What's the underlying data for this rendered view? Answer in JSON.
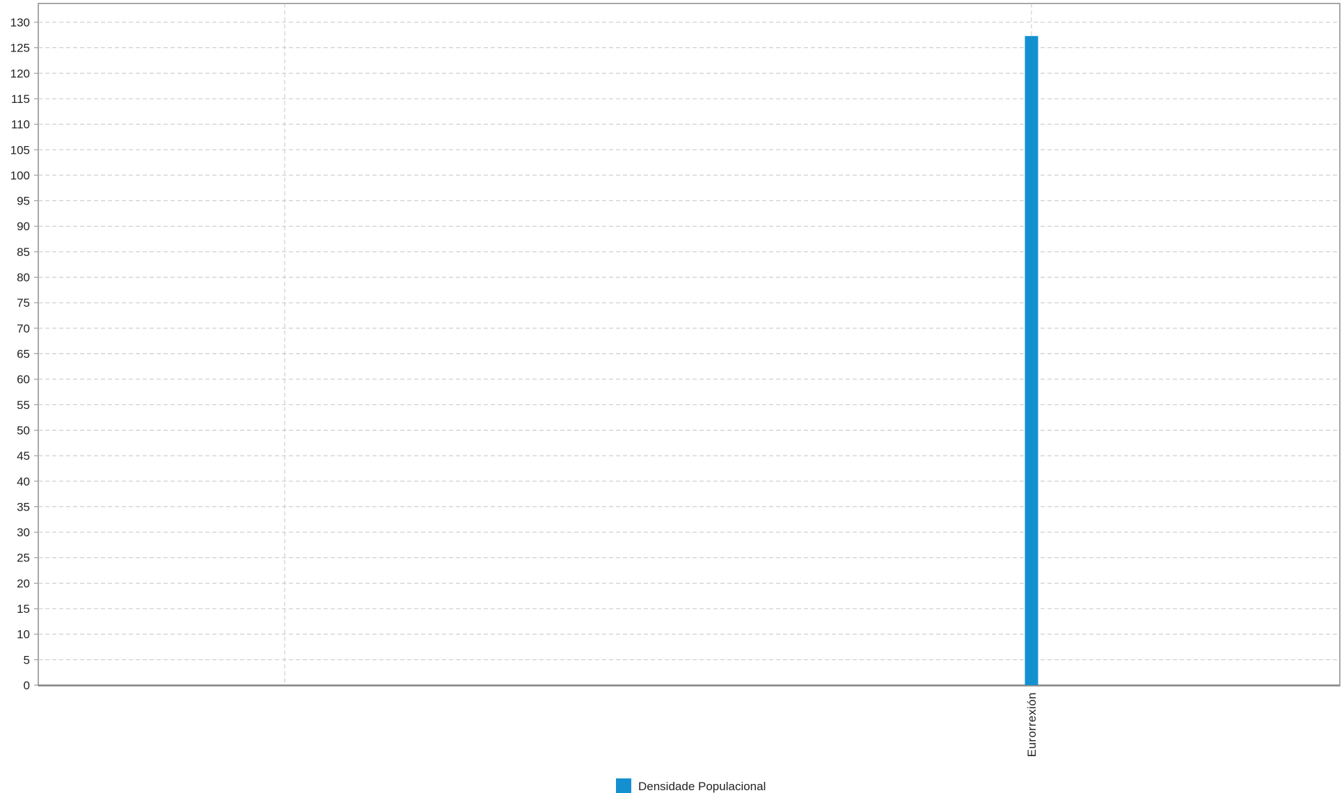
{
  "chart_data": {
    "type": "bar",
    "categories": [
      "",
      "Eurorrexión"
    ],
    "series": [
      {
        "name": "Densidade Populacional",
        "values": [
          null,
          127.3
        ],
        "color": "#1490d0"
      }
    ],
    "ylim": [
      0,
      130
    ],
    "yticks": [
      0,
      5,
      10,
      15,
      20,
      25,
      30,
      35,
      40,
      45,
      50,
      55,
      60,
      65,
      70,
      75,
      80,
      85,
      90,
      95,
      100,
      105,
      110,
      115,
      120,
      125,
      130
    ],
    "grid": true,
    "legend": {
      "position": "bottom",
      "entries": [
        "Densidade Populacional"
      ]
    }
  }
}
